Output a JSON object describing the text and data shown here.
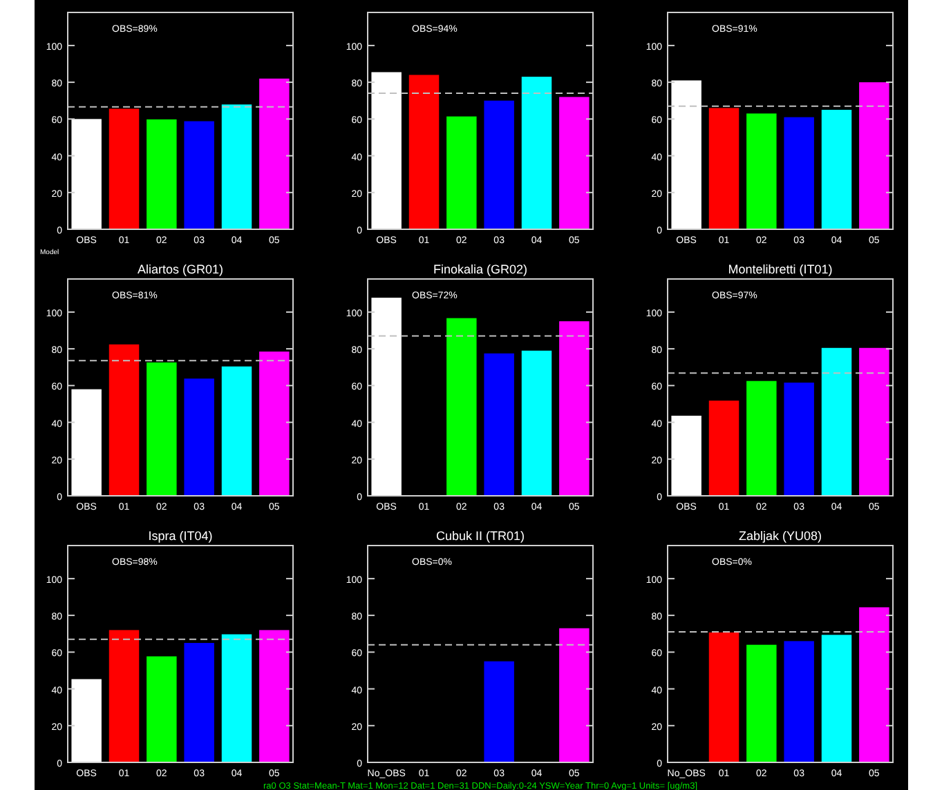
{
  "chart_data": [
    {
      "type": "bar",
      "categories": [
        "OBS",
        "01",
        "02",
        "03",
        "04",
        "05"
      ],
      "values": [
        60,
        65.6,
        59.8,
        58.8,
        67.9,
        82
      ],
      "colors": [
        "#ffffff",
        "#ff0000",
        "#00ff00",
        "#0000ff",
        "#00ffff",
        "#ff00ff"
      ],
      "ylim": [
        0,
        118
      ],
      "yticks": [
        0,
        20,
        40,
        60,
        80,
        100
      ],
      "ref_lines": [
        {
          "axis": "y",
          "value": 66.6,
          "color": "#c0c0c0",
          "line_style": "dashed"
        }
      ],
      "annotations": [
        "OBS=89%",
        "Model"
      ],
      "grid": false
    },
    {
      "type": "bar",
      "categories": [
        "OBS",
        "01",
        "02",
        "03",
        "04",
        "05"
      ],
      "values": [
        85.5,
        84,
        61.4,
        70,
        83,
        72
      ],
      "colors": [
        "#ffffff",
        "#ff0000",
        "#00ff00",
        "#0000ff",
        "#00ffff",
        "#ff00ff"
      ],
      "ylim": [
        0,
        118
      ],
      "yticks": [
        0,
        20,
        40,
        60,
        80,
        100
      ],
      "ref_lines": [
        {
          "axis": "y",
          "value": 74,
          "color": "#c0c0c0",
          "line_style": "dashed"
        }
      ],
      "annotations": [
        "OBS=94%"
      ],
      "grid": false
    },
    {
      "type": "bar",
      "categories": [
        "OBS",
        "01",
        "02",
        "03",
        "04",
        "05"
      ],
      "values": [
        81,
        66,
        63,
        61,
        65,
        80
      ],
      "colors": [
        "#ffffff",
        "#ff0000",
        "#00ff00",
        "#0000ff",
        "#00ffff",
        "#ff00ff"
      ],
      "ylim": [
        0,
        118
      ],
      "yticks": [
        0,
        20,
        40,
        60,
        80,
        100
      ],
      "ref_lines": [
        {
          "axis": "y",
          "value": 67,
          "color": "#c0c0c0",
          "line_style": "dashed"
        }
      ],
      "annotations": [
        "OBS=91%"
      ],
      "grid": false
    },
    {
      "type": "bar",
      "title": "Aliartos (GR01)",
      "categories": [
        "OBS",
        "01",
        "02",
        "03",
        "04",
        "05"
      ],
      "values": [
        58,
        82.4,
        72.6,
        63.8,
        70.4,
        78.5
      ],
      "colors": [
        "#ffffff",
        "#ff0000",
        "#00ff00",
        "#0000ff",
        "#00ffff",
        "#ff00ff"
      ],
      "ylim": [
        0,
        118
      ],
      "yticks": [
        0,
        20,
        40,
        60,
        80,
        100
      ],
      "ref_lines": [
        {
          "axis": "y",
          "value": 73.6,
          "color": "#c0c0c0",
          "line_style": "dashed"
        }
      ],
      "annotations": [
        "OBS=81%"
      ],
      "grid": false
    },
    {
      "type": "bar",
      "title": "Finokalia (GR02)",
      "categories": [
        "OBS",
        "01",
        "02",
        "03",
        "04",
        "05"
      ],
      "values": [
        107.8,
        null,
        96.7,
        77.5,
        79,
        95
      ],
      "colors": [
        "#ffffff",
        null,
        "#00ff00",
        "#0000ff",
        "#00ffff",
        "#ff00ff"
      ],
      "ylim": [
        0,
        118
      ],
      "yticks": [
        0,
        20,
        40,
        60,
        80,
        100
      ],
      "ref_lines": [
        {
          "axis": "y",
          "value": 87,
          "color": "#c0c0c0",
          "line_style": "dashed"
        }
      ],
      "annotations": [
        "OBS=72%"
      ],
      "grid": false
    },
    {
      "type": "bar",
      "title": "Montelibretti (IT01)",
      "categories": [
        "OBS",
        "01",
        "02",
        "03",
        "04",
        "05"
      ],
      "values": [
        43.6,
        51.8,
        62.5,
        61.6,
        80.5,
        80.5
      ],
      "colors": [
        "#ffffff",
        "#ff0000",
        "#00ff00",
        "#0000ff",
        "#00ffff",
        "#ff00ff"
      ],
      "ylim": [
        0,
        118
      ],
      "yticks": [
        0,
        20,
        40,
        60,
        80,
        100
      ],
      "ref_lines": [
        {
          "axis": "y",
          "value": 66.8,
          "color": "#c0c0c0",
          "line_style": "dashed"
        }
      ],
      "annotations": [
        "OBS=97%"
      ],
      "grid": false
    },
    {
      "type": "bar",
      "title": "Ispra (IT04)",
      "categories": [
        "OBS",
        "01",
        "02",
        "03",
        "04",
        "05"
      ],
      "values": [
        45.3,
        72,
        57.7,
        65,
        69.7,
        72
      ],
      "colors": [
        "#ffffff",
        "#ff0000",
        "#00ff00",
        "#0000ff",
        "#00ffff",
        "#ff00ff"
      ],
      "ylim": [
        0,
        118
      ],
      "yticks": [
        0,
        20,
        40,
        60,
        80,
        100
      ],
      "ref_lines": [
        {
          "axis": "y",
          "value": 67,
          "color": "#c0c0c0",
          "line_style": "dashed"
        }
      ],
      "annotations": [
        "OBS=98%"
      ],
      "grid": false
    },
    {
      "type": "bar",
      "title": "Cubuk II (TR01)",
      "categories": [
        "No_OBS",
        "01",
        "02",
        "03",
        "04",
        "05"
      ],
      "values": [
        null,
        null,
        null,
        55,
        null,
        73
      ],
      "colors": [
        null,
        null,
        null,
        "#0000ff",
        null,
        "#ff00ff"
      ],
      "ylim": [
        0,
        118
      ],
      "yticks": [
        0,
        20,
        40,
        60,
        80,
        100
      ],
      "ref_lines": [
        {
          "axis": "y",
          "value": 64,
          "color": "#c0c0c0",
          "line_style": "dashed"
        }
      ],
      "annotations": [
        "OBS=0%",
        "ra0 O3 Stat=Mean-T Mat=1 Mon=12 Dat=1 Den=31 DDN=Daily:0-24 YSW=Year Thr=0 Avg=1 Units= [ug/m3]"
      ],
      "grid": false
    },
    {
      "type": "bar",
      "title": "Zabljak (YU08)",
      "categories": [
        "No_OBS",
        "01",
        "02",
        "03",
        "04",
        "05"
      ],
      "values": [
        null,
        70.7,
        64,
        66,
        69.4,
        84.4
      ],
      "colors": [
        null,
        "#ff0000",
        "#00ff00",
        "#0000ff",
        "#00ffff",
        "#ff00ff"
      ],
      "ylim": [
        0,
        118
      ],
      "yticks": [
        0,
        20,
        40,
        60,
        80,
        100
      ],
      "ref_lines": [
        {
          "axis": "y",
          "value": 71,
          "color": "#c0c0c0",
          "line_style": "dashed"
        }
      ],
      "annotations": [
        "OBS=0%"
      ],
      "grid": false
    }
  ]
}
